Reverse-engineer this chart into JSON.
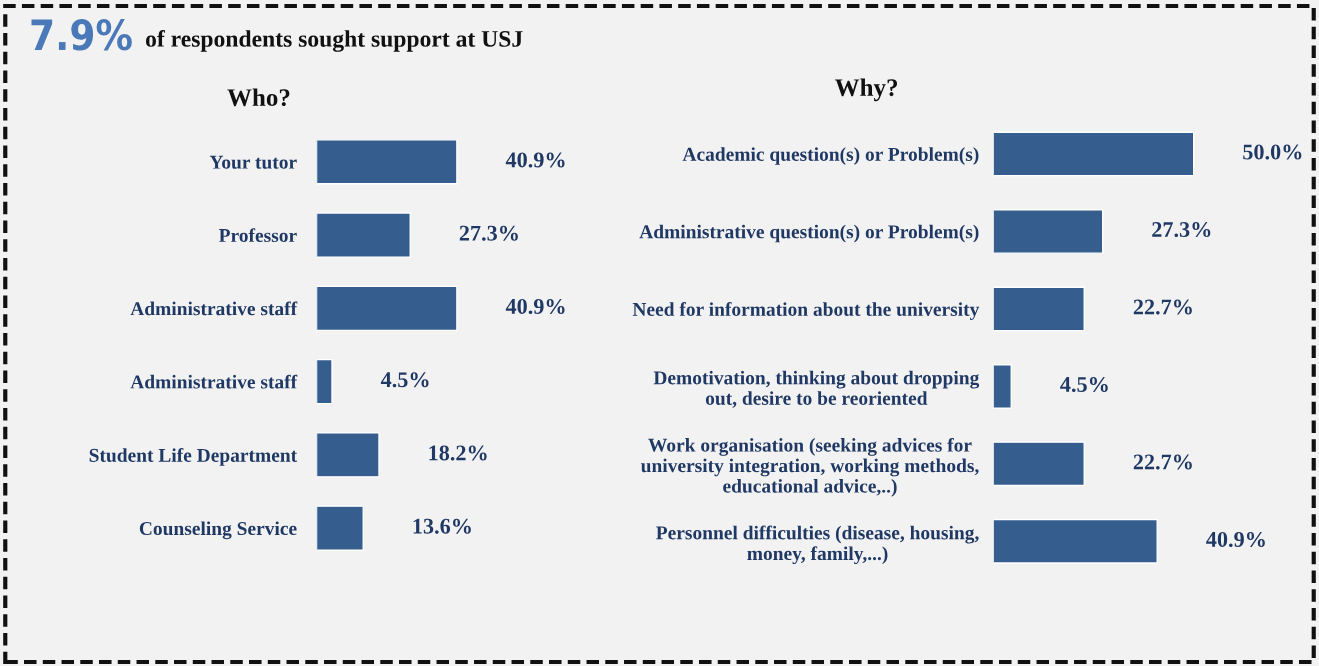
{
  "chart_data": [
    {
      "type": "bar",
      "orientation": "horizontal",
      "title": "Who?",
      "annotations": [
        "7.9%",
        "of respondents sought support at USJ"
      ],
      "categories": [
        "Your tutor",
        "Professor",
        "Administrative staff",
        "Administrative staff",
        "Student Life Department",
        "Counseling Service"
      ],
      "values": [
        40.9,
        27.3,
        40.9,
        4.5,
        18.2,
        13.6
      ],
      "value_labels": [
        "40.9%",
        "27.3%",
        "40.9%",
        "4.5%",
        "18.2%",
        "13.6%"
      ],
      "color": "#355e8f"
    },
    {
      "type": "bar",
      "orientation": "horizontal",
      "title": "Why?",
      "categories": [
        "Academic question(s) or Problem(s)",
        "Administrative question(s) or Problem(s)",
        "Need for information about the university",
        "Demotivation, thinking about dropping\nout, desire to be reoriented",
        "Work organisation (seeking advices for\nuniversity integration, working methods,\neducational advice,..)",
        "Personnel difficulties (disease, housing,\nmoney, family,...)"
      ],
      "values": [
        50.0,
        27.3,
        22.7,
        4.5,
        22.7,
        40.9
      ],
      "value_labels": [
        "50.0%",
        "27.3%",
        "22.7%",
        "4.5%",
        "22.7%",
        "40.9%"
      ],
      "color": "#355e8f"
    }
  ]
}
